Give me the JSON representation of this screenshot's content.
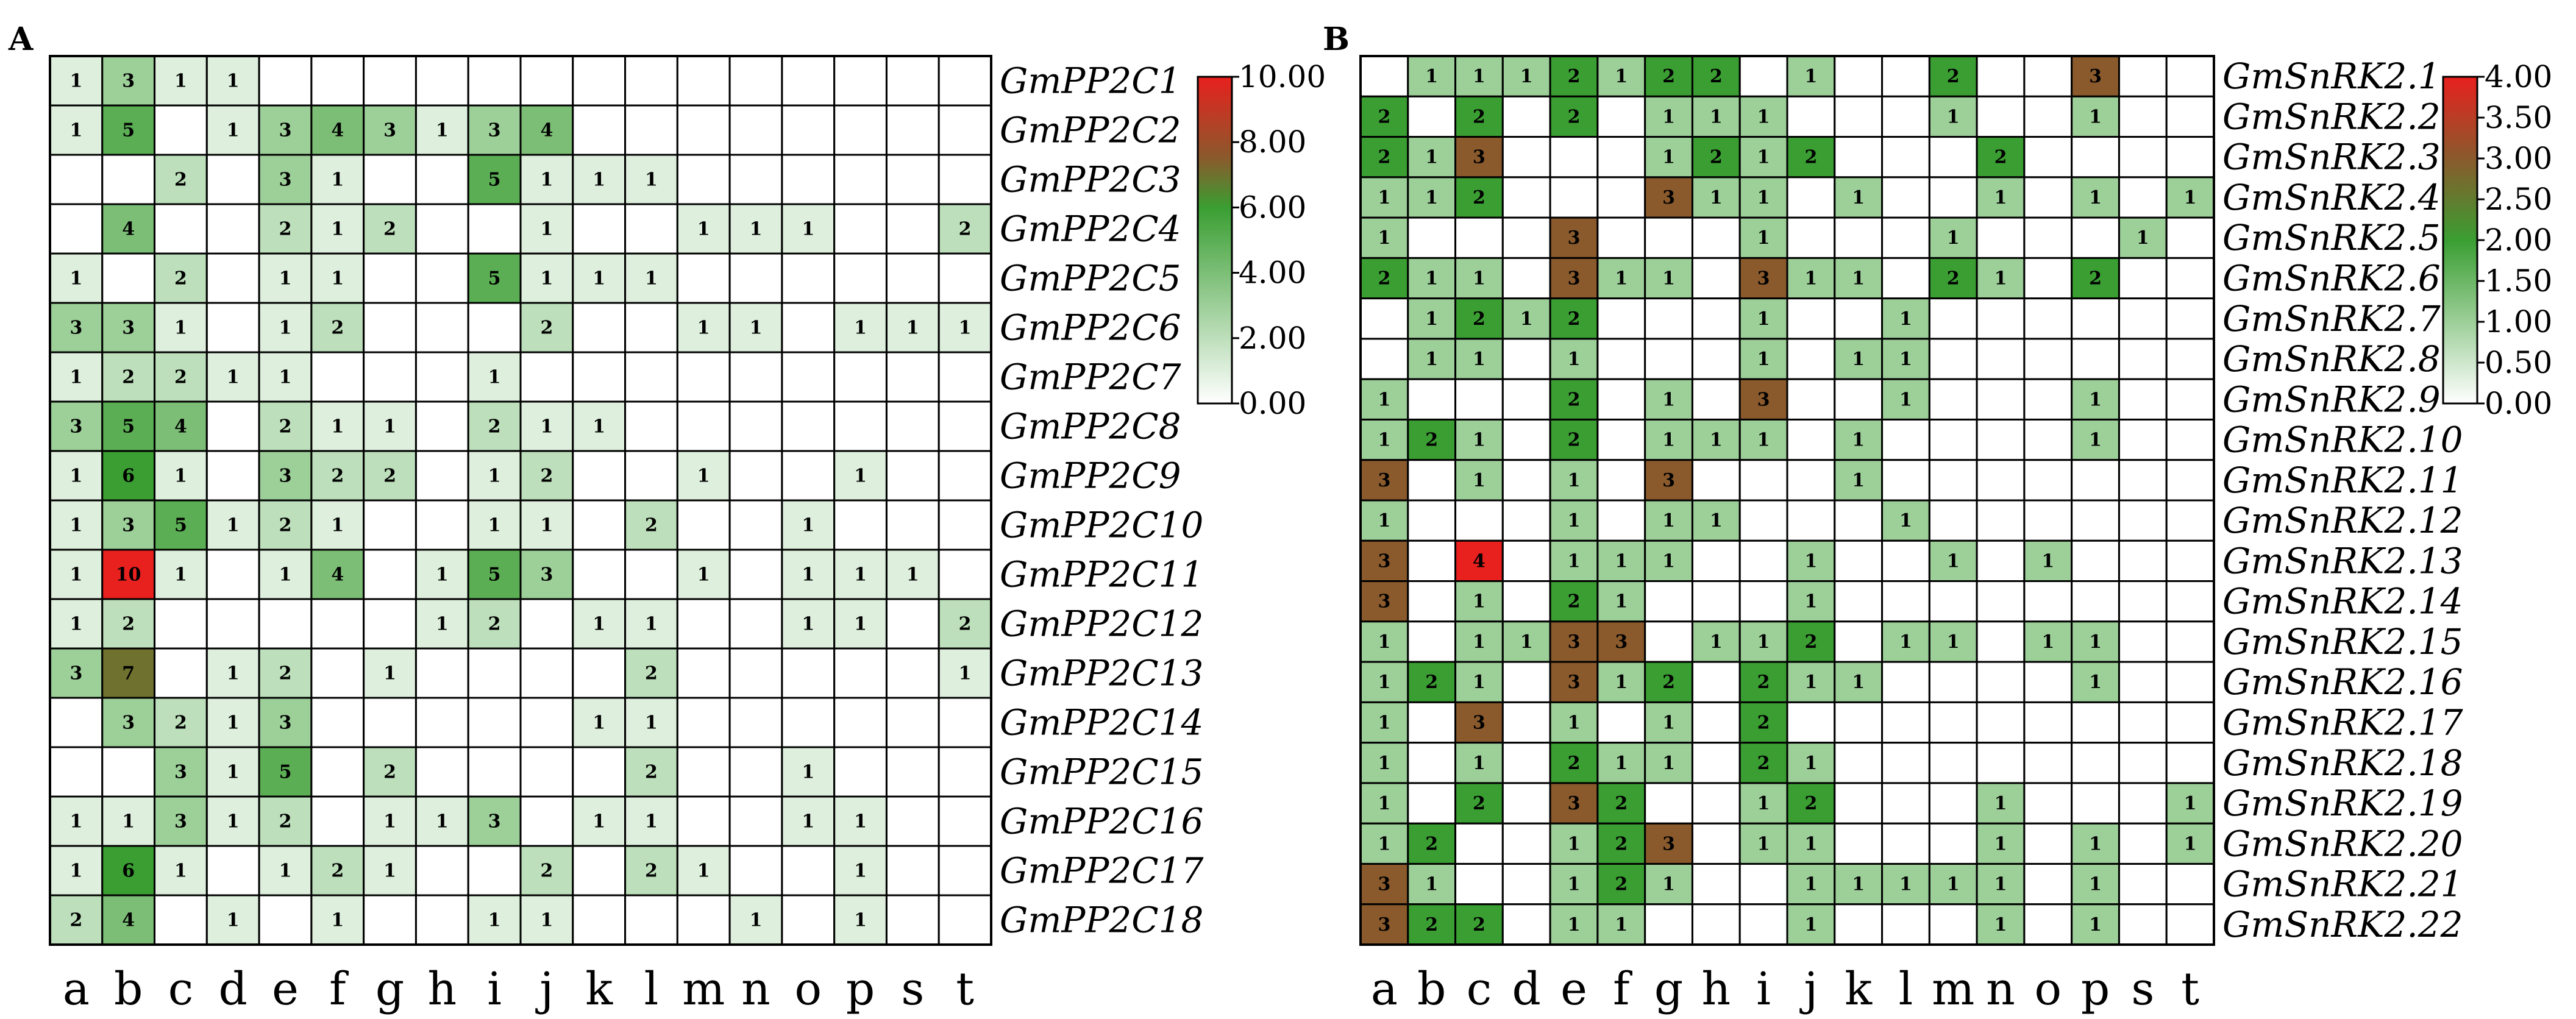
{
  "panels": [
    {
      "letter": "A"
    },
    {
      "letter": "B"
    }
  ],
  "chart_data": [
    {
      "type": "heatmap",
      "panel": "A",
      "columns": [
        "a",
        "b",
        "c",
        "d",
        "e",
        "f",
        "g",
        "h",
        "i",
        "j",
        "k",
        "l",
        "m",
        "n",
        "o",
        "p",
        "s",
        "t"
      ],
      "rows": [
        "GmPP2C1",
        "GmPP2C2",
        "GmPP2C3",
        "GmPP2C4",
        "GmPP2C5",
        "GmPP2C6",
        "GmPP2C7",
        "GmPP2C8",
        "GmPP2C9",
        "GmPP2C10",
        "GmPP2C11",
        "GmPP2C12",
        "GmPP2C13",
        "GmPP2C14",
        "GmPP2C15",
        "GmPP2C16",
        "GmPP2C17",
        "GmPP2C18"
      ],
      "values": [
        [
          1,
          3,
          1,
          1,
          0,
          0,
          0,
          0,
          0,
          0,
          0,
          0,
          0,
          0,
          0,
          0,
          0,
          0
        ],
        [
          1,
          5,
          0,
          1,
          3,
          4,
          3,
          1,
          3,
          4,
          0,
          0,
          0,
          0,
          0,
          0,
          0,
          0
        ],
        [
          0,
          0,
          2,
          0,
          3,
          1,
          0,
          0,
          5,
          1,
          1,
          1,
          0,
          0,
          0,
          0,
          0,
          0
        ],
        [
          0,
          4,
          0,
          0,
          2,
          1,
          2,
          0,
          0,
          1,
          0,
          0,
          1,
          1,
          1,
          0,
          0,
          2
        ],
        [
          1,
          0,
          2,
          0,
          1,
          1,
          0,
          0,
          5,
          1,
          1,
          1,
          0,
          0,
          0,
          0,
          0,
          0
        ],
        [
          3,
          3,
          1,
          0,
          1,
          2,
          0,
          0,
          0,
          2,
          0,
          0,
          1,
          1,
          0,
          1,
          1,
          1
        ],
        [
          1,
          2,
          2,
          1,
          1,
          0,
          0,
          0,
          1,
          0,
          0,
          0,
          0,
          0,
          0,
          0,
          0,
          0
        ],
        [
          3,
          5,
          4,
          0,
          2,
          1,
          1,
          0,
          2,
          1,
          1,
          0,
          0,
          0,
          0,
          0,
          0,
          0
        ],
        [
          1,
          6,
          1,
          0,
          3,
          2,
          2,
          0,
          1,
          2,
          0,
          0,
          1,
          0,
          0,
          1,
          0,
          0
        ],
        [
          1,
          3,
          5,
          1,
          2,
          1,
          0,
          0,
          1,
          1,
          0,
          2,
          0,
          0,
          1,
          0,
          0,
          0
        ],
        [
          1,
          10,
          1,
          0,
          1,
          4,
          0,
          1,
          5,
          3,
          0,
          0,
          1,
          0,
          1,
          1,
          1,
          0
        ],
        [
          1,
          2,
          0,
          0,
          0,
          0,
          0,
          1,
          2,
          0,
          1,
          1,
          0,
          0,
          1,
          1,
          0,
          2
        ],
        [
          3,
          7,
          0,
          1,
          2,
          0,
          1,
          0,
          0,
          0,
          0,
          2,
          0,
          0,
          0,
          0,
          0,
          1
        ],
        [
          0,
          3,
          2,
          1,
          3,
          0,
          0,
          0,
          0,
          0,
          1,
          1,
          0,
          0,
          0,
          0,
          0,
          0
        ],
        [
          0,
          0,
          3,
          1,
          5,
          0,
          2,
          0,
          0,
          0,
          0,
          2,
          0,
          0,
          1,
          0,
          0,
          0
        ],
        [
          1,
          1,
          3,
          1,
          2,
          0,
          1,
          1,
          3,
          0,
          1,
          1,
          0,
          0,
          1,
          1,
          0,
          0
        ],
        [
          1,
          6,
          1,
          0,
          1,
          2,
          1,
          0,
          0,
          2,
          0,
          2,
          1,
          0,
          0,
          1,
          0,
          0
        ],
        [
          2,
          4,
          0,
          1,
          0,
          1,
          0,
          0,
          1,
          1,
          0,
          0,
          0,
          1,
          0,
          1,
          0,
          0
        ]
      ],
      "colorbar": {
        "min": 0,
        "max": 10,
        "ticks": [
          "10.00",
          "8.00",
          "6.00",
          "4.00",
          "2.00",
          "0.00"
        ]
      },
      "colors": {
        "low": "#ffffff",
        "mid": "#3a9e32",
        "mid2": "#8a5a2c",
        "high": "#e8201e"
      }
    },
    {
      "type": "heatmap",
      "panel": "B",
      "columns": [
        "a",
        "b",
        "c",
        "d",
        "e",
        "f",
        "g",
        "h",
        "i",
        "j",
        "k",
        "l",
        "m",
        "n",
        "o",
        "p",
        "s",
        "t"
      ],
      "rows": [
        "GmSnRK2.1",
        "GmSnRK2.2",
        "GmSnRK2.3",
        "GmSnRK2.4",
        "GmSnRK2.5",
        "GmSnRK2.6",
        "GmSnRK2.7",
        "GmSnRK2.8",
        "GmSnRK2.9",
        "GmSnRK2.10",
        "GmSnRK2.11",
        "GmSnRK2.12",
        "GmSnRK2.13",
        "GmSnRK2.14",
        "GmSnRK2.15",
        "GmSnRK2.16",
        "GmSnRK2.17",
        "GmSnRK2.18",
        "GmSnRK2.19",
        "GmSnRK2.20",
        "GmSnRK2.21",
        "GmSnRK2.22"
      ],
      "values": [
        [
          0,
          1,
          1,
          1,
          2,
          1,
          2,
          2,
          0,
          1,
          0,
          0,
          2,
          0,
          0,
          3,
          0,
          0
        ],
        [
          2,
          0,
          2,
          0,
          2,
          0,
          1,
          1,
          1,
          0,
          0,
          0,
          1,
          0,
          0,
          1,
          0,
          0
        ],
        [
          2,
          1,
          3,
          0,
          0,
          0,
          1,
          2,
          1,
          2,
          0,
          0,
          0,
          2,
          0,
          0,
          0,
          0
        ],
        [
          1,
          1,
          2,
          0,
          0,
          0,
          3,
          1,
          1,
          0,
          1,
          0,
          0,
          1,
          0,
          1,
          0,
          1
        ],
        [
          1,
          0,
          0,
          0,
          3,
          0,
          0,
          0,
          1,
          0,
          0,
          0,
          1,
          0,
          0,
          0,
          1,
          0
        ],
        [
          2,
          1,
          1,
          0,
          3,
          1,
          1,
          0,
          3,
          1,
          1,
          0,
          2,
          1,
          0,
          2,
          0,
          0
        ],
        [
          0,
          1,
          2,
          1,
          2,
          0,
          0,
          0,
          1,
          0,
          0,
          1,
          0,
          0,
          0,
          0,
          0,
          0
        ],
        [
          0,
          1,
          1,
          0,
          1,
          0,
          0,
          0,
          1,
          0,
          1,
          1,
          0,
          0,
          0,
          0,
          0,
          0
        ],
        [
          1,
          0,
          0,
          0,
          2,
          0,
          1,
          0,
          3,
          0,
          0,
          1,
          0,
          0,
          0,
          1,
          0,
          0
        ],
        [
          1,
          2,
          1,
          0,
          2,
          0,
          1,
          1,
          1,
          0,
          1,
          0,
          0,
          0,
          0,
          1,
          0,
          0
        ],
        [
          3,
          0,
          1,
          0,
          1,
          0,
          3,
          0,
          0,
          0,
          1,
          0,
          0,
          0,
          0,
          0,
          0,
          0
        ],
        [
          1,
          0,
          0,
          0,
          1,
          0,
          1,
          1,
          0,
          0,
          0,
          1,
          0,
          0,
          0,
          0,
          0,
          0
        ],
        [
          3,
          0,
          4,
          0,
          1,
          1,
          1,
          0,
          0,
          1,
          0,
          0,
          1,
          0,
          1,
          0,
          0,
          0
        ],
        [
          3,
          0,
          1,
          0,
          2,
          1,
          0,
          0,
          0,
          1,
          0,
          0,
          0,
          0,
          0,
          0,
          0,
          0
        ],
        [
          1,
          0,
          1,
          1,
          3,
          3,
          0,
          1,
          1,
          2,
          0,
          1,
          1,
          0,
          1,
          1,
          0,
          0
        ],
        [
          1,
          2,
          1,
          0,
          3,
          1,
          2,
          0,
          2,
          1,
          1,
          0,
          0,
          0,
          0,
          1,
          0,
          0
        ],
        [
          1,
          0,
          3,
          0,
          1,
          0,
          1,
          0,
          2,
          0,
          0,
          0,
          0,
          0,
          0,
          0,
          0,
          0
        ],
        [
          1,
          0,
          1,
          0,
          2,
          1,
          1,
          0,
          2,
          1,
          0,
          0,
          0,
          0,
          0,
          0,
          0,
          0
        ],
        [
          1,
          0,
          2,
          0,
          3,
          2,
          0,
          0,
          1,
          2,
          0,
          0,
          0,
          1,
          0,
          0,
          0,
          1
        ],
        [
          1,
          2,
          0,
          0,
          1,
          2,
          3,
          0,
          1,
          1,
          0,
          0,
          0,
          1,
          0,
          1,
          0,
          1
        ],
        [
          3,
          1,
          0,
          0,
          1,
          2,
          1,
          0,
          0,
          1,
          1,
          1,
          1,
          1,
          0,
          1,
          0,
          0
        ],
        [
          3,
          2,
          2,
          0,
          1,
          1,
          0,
          0,
          0,
          1,
          0,
          0,
          0,
          1,
          0,
          1,
          0,
          0
        ]
      ],
      "colorbar": {
        "min": 0,
        "max": 4,
        "ticks": [
          "4.00",
          "3.50",
          "3.00",
          "2.50",
          "2.00",
          "1.50",
          "1.00",
          "0.50",
          "0.00"
        ]
      },
      "colors": {
        "low": "#ffffff",
        "mid": "#3a9e32",
        "mid2": "#8a5a2c",
        "high": "#e8201e"
      }
    }
  ]
}
